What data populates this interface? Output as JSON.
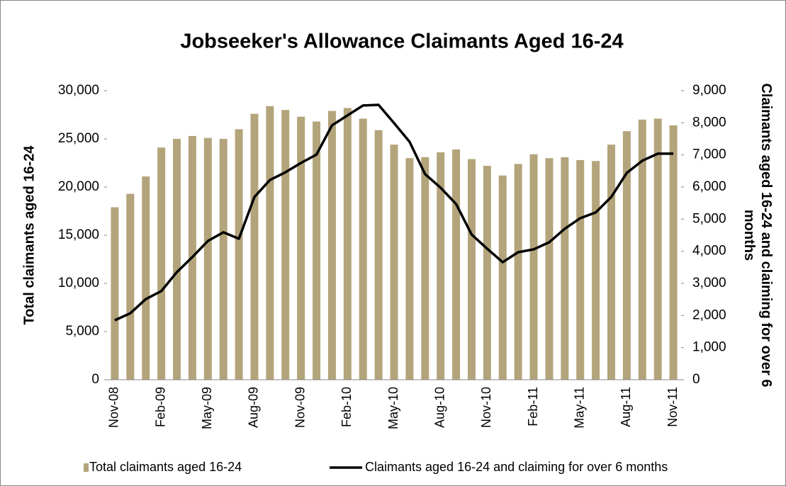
{
  "chart_data": {
    "type": "bar",
    "title": "Jobseeker's Allowance Claimants Aged 16-24",
    "ylabel": "Total claimants aged 16-24",
    "y2label": "Claimants aged 16-24 and claiming for over 6 months",
    "categories": [
      "Nov-08",
      null,
      null,
      "Feb-09",
      null,
      null,
      "May-09",
      null,
      null,
      "Aug-09",
      null,
      null,
      "Nov-09",
      null,
      null,
      "Feb-10",
      null,
      null,
      "May-10",
      null,
      null,
      "Aug-10",
      null,
      null,
      "Nov-10",
      null,
      null,
      "Feb-11",
      null,
      null,
      "May-11",
      null,
      null,
      "Aug-11",
      null,
      null,
      "Nov-11"
    ],
    "series": [
      {
        "name": "Total claimants aged 16-24",
        "type": "bar",
        "color": "#b3a47b",
        "values": [
          17900,
          19300,
          21100,
          24100,
          25000,
          25300,
          25100,
          25000,
          26000,
          27600,
          28400,
          28000,
          27300,
          26800,
          27900,
          28200,
          27100,
          25900,
          24400,
          23000,
          23100,
          23600,
          23900,
          22900,
          22200,
          21200,
          22400,
          23400,
          23000,
          23100,
          22800,
          22700,
          24400,
          25800,
          27000,
          27100,
          26400
        ]
      },
      {
        "name": "Claimants aged 16-24 and claiming for over 6 months",
        "type": "line",
        "axis": "y2",
        "color": "#000000",
        "values": [
          1850,
          2070,
          2510,
          2760,
          3350,
          3820,
          4320,
          4590,
          4390,
          5690,
          6220,
          6460,
          6750,
          7010,
          7920,
          8230,
          8540,
          8560,
          7990,
          7410,
          6400,
          5980,
          5470,
          4520,
          4080,
          3660,
          3970,
          4060,
          4280,
          4700,
          5030,
          5210,
          5690,
          6440,
          6820,
          7040,
          7040
        ]
      }
    ],
    "ylim": [
      0,
      30000
    ],
    "yticks": [
      0,
      {
        "value": 5000,
        "label": "5,000"
      },
      {
        "value": 10000,
        "label": "10,000"
      },
      {
        "value": 15000,
        "label": "15,000"
      },
      {
        "value": 20000,
        "label": "20,000"
      },
      {
        "value": 25000,
        "label": "25,000"
      },
      {
        "value": 30000,
        "label": "30,000"
      }
    ],
    "y2lim": [
      0,
      9000
    ],
    "y2ticks": [
      0,
      {
        "value": 1000,
        "label": "1,000"
      },
      {
        "value": 2000,
        "label": "2,000"
      },
      {
        "value": 3000,
        "label": "3,000"
      },
      {
        "value": 4000,
        "label": "4,000"
      },
      {
        "value": 5000,
        "label": "5,000"
      },
      {
        "value": 6000,
        "label": "6,000"
      },
      {
        "value": 7000,
        "label": "7,000"
      },
      {
        "value": 8000,
        "label": "8,000"
      },
      {
        "value": 9000,
        "label": "9,000"
      }
    ],
    "grid": false,
    "legend": "bottom"
  }
}
